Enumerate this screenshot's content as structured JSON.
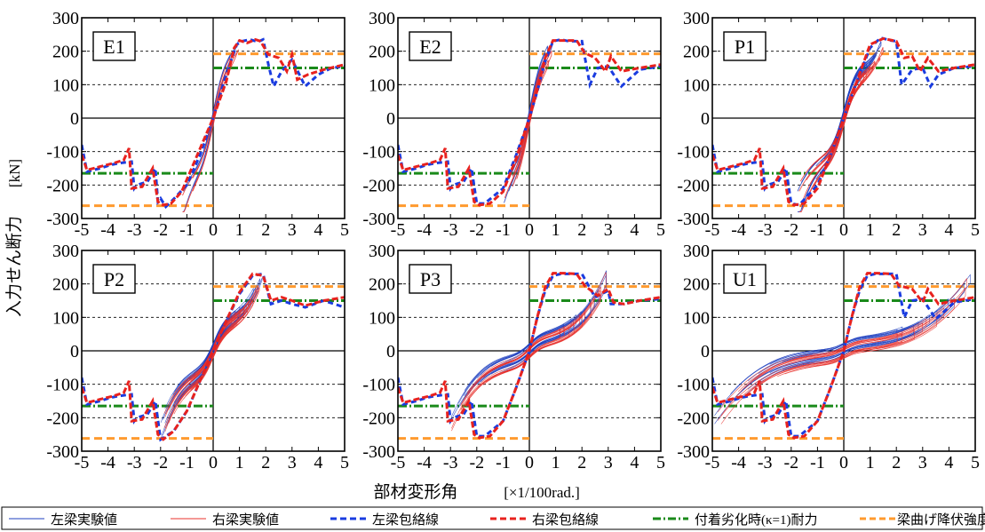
{
  "figure": {
    "y_axis_label_jp": "入力せん断力",
    "y_axis_unit": "[kN]",
    "x_axis_label": "部材変形角",
    "x_axis_unit": "[×1/100rad.]"
  },
  "legend": [
    {
      "label": "左梁実験値",
      "color": "#1f3fbf",
      "style": "thin"
    },
    {
      "label": "右梁実験値",
      "color": "#e8332e",
      "style": "thin"
    },
    {
      "label": "左梁包絡線",
      "color": "#1a3ce0",
      "style": "dash-thick"
    },
    {
      "label": "右梁包絡線",
      "color": "#e8221e",
      "style": "dash-thick"
    },
    {
      "label": "付着劣化時(κ=1)耐力",
      "color": "#1a8a1a",
      "style": "dashdot-thick"
    },
    {
      "label": "梁曲げ降伏強度",
      "color": "#ff9a2e",
      "style": "dash-thick"
    }
  ],
  "chart_data": [
    {
      "type": "line",
      "panel": "E1",
      "xlim": [
        -5,
        5
      ],
      "ylim": [
        -300,
        300
      ],
      "xticks": [
        -5,
        -4,
        -3,
        -2,
        -1,
        0,
        1,
        2,
        3,
        4,
        5
      ],
      "yticks": [
        300,
        200,
        100,
        0,
        -100,
        -200,
        -300
      ],
      "grid": true,
      "reference_lines": {
        "bond_capacity": [
          150,
          -165
        ],
        "flexural_yield": [
          192,
          -262
        ]
      },
      "series": [
        {
          "name": "左梁包絡線",
          "x": [
            -5,
            -4.8,
            -4.3,
            -3.9,
            -3.6,
            -3.1,
            -3.0,
            -2.9,
            -2.5,
            -2.2,
            -2.1,
            -2.0,
            -1.8,
            -1.6,
            -1.0,
            -0.5,
            0,
            0.5,
            0.9,
            1.1,
            1.4,
            1.7,
            1.9,
            2.1,
            2.3,
            2.6,
            3.0,
            3.5,
            4.0,
            4.5,
            5.0
          ],
          "y": [
            -80,
            -160,
            -150,
            -140,
            -135,
            -130,
            -210,
            -200,
            -190,
            -150,
            -250,
            -240,
            -265,
            -250,
            -200,
            -110,
            0,
            130,
            220,
            230,
            235,
            228,
            235,
            160,
            95,
            140,
            175,
            95,
            130,
            150,
            155
          ]
        },
        {
          "name": "右梁包絡線",
          "x": [
            -5,
            -4.8,
            -4.3,
            -3.8,
            -3.4,
            -3.2,
            -3.1,
            -2.7,
            -2.3,
            -2.1,
            -1.9,
            -1.6,
            -1.2,
            -0.6,
            0,
            0.5,
            0.8,
            1.0,
            1.3,
            1.6,
            1.8,
            2.1,
            2.5,
            2.8,
            3.0,
            3.2,
            3.6,
            4.2,
            5.0
          ],
          "y": [
            -110,
            -155,
            -145,
            -135,
            -125,
            -90,
            -210,
            -205,
            -150,
            -250,
            -260,
            -255,
            -220,
            -110,
            0,
            110,
            210,
            232,
            225,
            235,
            230,
            190,
            180,
            140,
            190,
            115,
            130,
            145,
            160
          ]
        }
      ]
    },
    {
      "type": "line",
      "panel": "E2",
      "xlim": [
        -5,
        5
      ],
      "ylim": [
        -300,
        300
      ],
      "xticks": [
        -5,
        -4,
        -3,
        -2,
        -1,
        0,
        1,
        2,
        3,
        4,
        5
      ],
      "yticks": [
        300,
        200,
        100,
        0,
        -100,
        -200,
        -300
      ],
      "grid": true,
      "reference_lines": {
        "bond_capacity": [
          150,
          -165
        ],
        "flexural_yield": [
          192,
          -262
        ]
      },
      "series": [
        {
          "name": "左梁包絡線",
          "x": [
            -5,
            -4.8,
            -4.3,
            -3.9,
            -3.6,
            -3.1,
            -3.0,
            -2.9,
            -2.5,
            -2.2,
            -2.0,
            -1.7,
            -1.0,
            -0.5,
            0,
            0.3,
            0.6,
            0.9,
            1.2,
            1.5,
            2.0,
            2.3,
            2.6,
            3.0,
            3.5,
            4.2,
            5.0
          ],
          "y": [
            -80,
            -160,
            -150,
            -140,
            -135,
            -130,
            -210,
            -200,
            -190,
            -150,
            -255,
            -255,
            -210,
            -110,
            0,
            80,
            170,
            230,
            235,
            230,
            230,
            100,
            150,
            155,
            95,
            145,
            155
          ]
        },
        {
          "name": "右梁包絡線",
          "x": [
            -5,
            -4.8,
            -4.3,
            -3.8,
            -3.4,
            -3.2,
            -3.1,
            -2.7,
            -2.3,
            -2.1,
            -1.9,
            -1.5,
            -1.0,
            -0.5,
            0,
            0.3,
            0.6,
            0.9,
            1.3,
            1.8,
            2.1,
            2.5,
            2.9,
            3.1,
            3.5,
            4.2,
            5.0
          ],
          "y": [
            -110,
            -155,
            -145,
            -135,
            -125,
            -90,
            -210,
            -205,
            -150,
            -250,
            -260,
            -255,
            -220,
            -120,
            0,
            85,
            180,
            232,
            232,
            232,
            195,
            180,
            140,
            185,
            140,
            150,
            160
          ]
        }
      ]
    },
    {
      "type": "line",
      "panel": "P1",
      "xlim": [
        -5,
        5
      ],
      "ylim": [
        -300,
        300
      ],
      "xticks": [
        -5,
        -4,
        -3,
        -2,
        -1,
        0,
        1,
        2,
        3,
        4,
        5
      ],
      "yticks": [
        300,
        200,
        100,
        0,
        -100,
        -200,
        -300
      ],
      "grid": true,
      "reference_lines": {
        "bond_capacity": [
          150,
          -165
        ],
        "flexural_yield": [
          192,
          -262
        ]
      },
      "series": [
        {
          "name": "左梁包絡線",
          "x": [
            -5,
            -4.8,
            -4.3,
            -3.9,
            -3.6,
            -3.1,
            -3.0,
            -2.9,
            -2.5,
            -2.2,
            -2.0,
            -1.7,
            -1.0,
            -0.5,
            0,
            0.5,
            1.0,
            1.4,
            1.8,
            2.0,
            2.2,
            2.6,
            3.0,
            3.3,
            3.6,
            4.2,
            5.0
          ],
          "y": [
            -80,
            -160,
            -150,
            -140,
            -135,
            -130,
            -210,
            -200,
            -190,
            -150,
            -255,
            -260,
            -200,
            -110,
            0,
            110,
            210,
            240,
            232,
            230,
            100,
            145,
            150,
            95,
            130,
            150,
            155
          ]
        },
        {
          "name": "右梁包絡線",
          "x": [
            -5,
            -4.8,
            -4.3,
            -3.8,
            -3.4,
            -3.2,
            -3.1,
            -2.7,
            -2.3,
            -2.1,
            -1.9,
            -1.5,
            -1.0,
            -0.5,
            0,
            0.5,
            1.0,
            1.5,
            2.0,
            2.3,
            2.6,
            2.9,
            3.2,
            3.6,
            4.2,
            5.0
          ],
          "y": [
            -110,
            -155,
            -145,
            -135,
            -125,
            -90,
            -210,
            -205,
            -150,
            -250,
            -260,
            -255,
            -210,
            -110,
            0,
            110,
            220,
            238,
            230,
            180,
            185,
            140,
            180,
            140,
            150,
            160
          ]
        }
      ]
    },
    {
      "type": "line",
      "panel": "P2",
      "xlim": [
        -5,
        5
      ],
      "ylim": [
        -300,
        300
      ],
      "xticks": [
        -5,
        -4,
        -3,
        -2,
        -1,
        0,
        1,
        2,
        3,
        4,
        5
      ],
      "yticks": [
        300,
        200,
        100,
        0,
        -100,
        -200,
        -300
      ],
      "grid": true,
      "reference_lines": {
        "bond_capacity": [
          150,
          -165
        ],
        "flexural_yield": [
          192,
          -262
        ]
      },
      "series": [
        {
          "name": "左梁包絡線",
          "x": [
            -5,
            -4.8,
            -4.3,
            -3.9,
            -3.6,
            -3.1,
            -3.0,
            -2.9,
            -2.5,
            -2.2,
            -2.0,
            -1.5,
            -1.0,
            -0.5,
            0,
            0.5,
            1.0,
            1.5,
            1.9,
            2.2,
            2.6,
            3.0,
            3.5,
            4.2,
            5.0
          ],
          "y": [
            -80,
            -160,
            -150,
            -140,
            -135,
            -130,
            -210,
            -200,
            -190,
            -150,
            -265,
            -240,
            -180,
            -90,
            0,
            90,
            170,
            225,
            230,
            140,
            150,
            140,
            130,
            150,
            130
          ]
        },
        {
          "name": "右梁包絡線",
          "x": [
            -5,
            -4.8,
            -4.3,
            -3.8,
            -3.4,
            -3.2,
            -3.1,
            -2.7,
            -2.3,
            -2.1,
            -1.9,
            -1.5,
            -1.0,
            -0.5,
            0,
            0.5,
            1.0,
            1.5,
            1.9,
            2.2,
            2.6,
            3.0,
            3.5,
            4.2,
            5.0
          ],
          "y": [
            -110,
            -155,
            -145,
            -135,
            -125,
            -90,
            -210,
            -205,
            -150,
            -250,
            -265,
            -240,
            -180,
            -90,
            0,
            90,
            175,
            230,
            225,
            150,
            160,
            150,
            135,
            150,
            160
          ]
        }
      ]
    },
    {
      "type": "line",
      "panel": "P3",
      "xlim": [
        -5,
        5
      ],
      "ylim": [
        -300,
        300
      ],
      "xticks": [
        -5,
        -4,
        -3,
        -2,
        -1,
        0,
        1,
        2,
        3,
        4,
        5
      ],
      "yticks": [
        300,
        200,
        100,
        0,
        -100,
        -200,
        -300
      ],
      "grid": true,
      "reference_lines": {
        "bond_capacity": [
          150,
          -165
        ],
        "flexural_yield": [
          192,
          -262
        ]
      },
      "series": [
        {
          "name": "左梁包絡線",
          "x": [
            -5,
            -4.8,
            -4.3,
            -3.9,
            -3.6,
            -3.1,
            -3.0,
            -2.9,
            -2.5,
            -2.2,
            -2.0,
            -1.7,
            -1.0,
            -0.5,
            0,
            0.3,
            0.6,
            0.9,
            1.2,
            1.6,
            2.0,
            2.5,
            3.0,
            3.1,
            3.5,
            4.2,
            5.0
          ],
          "y": [
            -80,
            -160,
            -150,
            -140,
            -135,
            -130,
            -210,
            -200,
            -190,
            -150,
            -255,
            -255,
            -210,
            -110,
            0,
            100,
            180,
            225,
            230,
            230,
            230,
            160,
            180,
            140,
            140,
            150,
            155
          ]
        },
        {
          "name": "右梁包絡線",
          "x": [
            -5,
            -4.8,
            -4.3,
            -3.8,
            -3.4,
            -3.2,
            -3.1,
            -2.7,
            -2.3,
            -2.1,
            -1.9,
            -1.5,
            -1.0,
            -0.5,
            0,
            0.3,
            0.6,
            0.9,
            1.3,
            1.8,
            2.1,
            2.6,
            3.0,
            3.2,
            3.6,
            4.2,
            5.0
          ],
          "y": [
            -110,
            -155,
            -145,
            -135,
            -125,
            -90,
            -210,
            -205,
            -150,
            -250,
            -260,
            -255,
            -210,
            -110,
            0,
            100,
            190,
            232,
            232,
            230,
            195,
            165,
            185,
            145,
            140,
            150,
            160
          ]
        }
      ]
    },
    {
      "type": "line",
      "panel": "U1",
      "xlim": [
        -5,
        5
      ],
      "ylim": [
        -300,
        300
      ],
      "xticks": [
        -5,
        -4,
        -3,
        -2,
        -1,
        0,
        1,
        2,
        3,
        4,
        5
      ],
      "yticks": [
        300,
        200,
        100,
        0,
        -100,
        -200,
        -300
      ],
      "grid": true,
      "reference_lines": {
        "bond_capacity": [
          150,
          -165
        ],
        "flexural_yield": [
          192,
          -262
        ]
      },
      "series": [
        {
          "name": "左梁包絡線",
          "x": [
            -5,
            -4.8,
            -4.3,
            -3.9,
            -3.6,
            -3.1,
            -3.0,
            -2.9,
            -2.5,
            -2.2,
            -2.0,
            -1.7,
            -1.0,
            -0.5,
            0,
            0.3,
            0.6,
            0.9,
            1.2,
            1.6,
            2.0,
            2.3,
            2.6,
            3.0,
            3.5,
            4.2,
            5.0
          ],
          "y": [
            -80,
            -160,
            -150,
            -140,
            -135,
            -130,
            -210,
            -200,
            -190,
            -150,
            -255,
            -255,
            -210,
            -110,
            0,
            100,
            180,
            225,
            230,
            230,
            230,
            100,
            150,
            155,
            95,
            145,
            155
          ]
        },
        {
          "name": "右梁包絡線",
          "x": [
            -5,
            -4.8,
            -4.3,
            -3.8,
            -3.4,
            -3.2,
            -3.1,
            -2.7,
            -2.3,
            -2.1,
            -1.9,
            -1.5,
            -1.0,
            -0.5,
            0,
            0.3,
            0.6,
            0.9,
            1.3,
            1.8,
            2.1,
            2.6,
            3.0,
            3.2,
            3.6,
            4.2,
            5.0
          ],
          "y": [
            -110,
            -155,
            -145,
            -135,
            -125,
            -90,
            -210,
            -205,
            -150,
            -250,
            -260,
            -255,
            -210,
            -110,
            0,
            100,
            190,
            232,
            232,
            230,
            195,
            185,
            145,
            185,
            140,
            150,
            160
          ]
        }
      ]
    }
  ]
}
